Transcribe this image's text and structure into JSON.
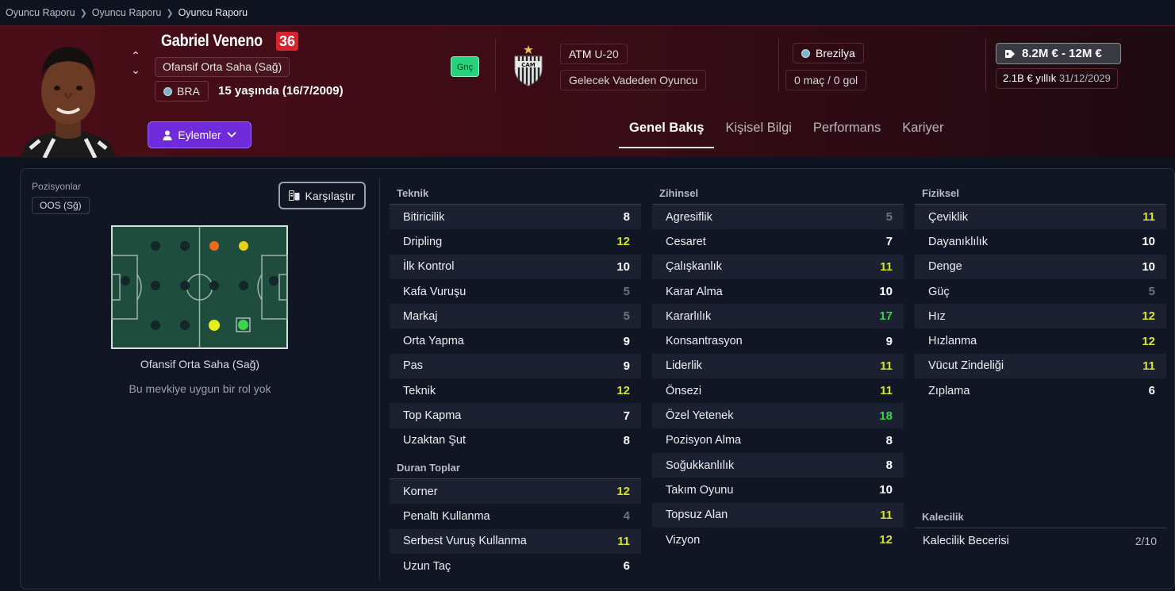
{
  "breadcrumb": [
    "Oyuncu Raporu",
    "Oyuncu Raporu",
    "Oyuncu Raporu"
  ],
  "player": {
    "name": "Gabriel Veneno",
    "ca": "36",
    "position": "Ofansif Orta Saha (Sağ)",
    "nation_code": "BRA",
    "age": "15 yaşında (16/7/2009)",
    "tag": "Gnç"
  },
  "club": {
    "name": "ATM",
    "team": "U-20",
    "status": "Gelecek Vadeden Oyuncu"
  },
  "nation": {
    "name": "Brezilya",
    "caps": "0 maç / 0 gol"
  },
  "value": {
    "range": "8.2M € - 12M €",
    "wage": "2.1B € yıllık",
    "contract_end": "31/12/2029"
  },
  "actions_label": "Eylemler",
  "tabs": [
    "Genel Bakış",
    "Kişisel Bilgi",
    "Performans",
    "Kariyer"
  ],
  "positions": {
    "label": "Pozisyonlar",
    "badge": "OOS (Sğ)",
    "compare_label": "Karşılaştır",
    "role": "Ofansif Orta Saha (Sağ)",
    "note": "Bu mevkiye uygun bir rol yok"
  },
  "attributes": {
    "technical": {
      "title": "Teknik",
      "items": [
        {
          "name": "Bitiricilik",
          "value": "8",
          "color": "white"
        },
        {
          "name": "Dripling",
          "value": "12",
          "color": "yellow"
        },
        {
          "name": "İlk Kontrol",
          "value": "10",
          "color": "white"
        },
        {
          "name": "Kafa Vuruşu",
          "value": "5",
          "color": "grey"
        },
        {
          "name": "Markaj",
          "value": "5",
          "color": "grey"
        },
        {
          "name": "Orta Yapma",
          "value": "9",
          "color": "white"
        },
        {
          "name": "Pas",
          "value": "9",
          "color": "white"
        },
        {
          "name": "Teknik",
          "value": "12",
          "color": "yellow"
        },
        {
          "name": "Top Kapma",
          "value": "7",
          "color": "white"
        },
        {
          "name": "Uzaktan Şut",
          "value": "8",
          "color": "white"
        }
      ]
    },
    "set_pieces": {
      "title": "Duran Toplar",
      "items": [
        {
          "name": "Korner",
          "value": "12",
          "color": "yellow"
        },
        {
          "name": "Penaltı Kullanma",
          "value": "4",
          "color": "grey"
        },
        {
          "name": "Serbest Vuruş Kullanma",
          "value": "11",
          "color": "yellow"
        },
        {
          "name": "Uzun Taç",
          "value": "6",
          "color": "white"
        }
      ]
    },
    "mental": {
      "title": "Zihinsel",
      "items": [
        {
          "name": "Agresiflik",
          "value": "5",
          "color": "grey"
        },
        {
          "name": "Cesaret",
          "value": "7",
          "color": "white"
        },
        {
          "name": "Çalışkanlık",
          "value": "11",
          "color": "yellow"
        },
        {
          "name": "Karar Alma",
          "value": "10",
          "color": "white"
        },
        {
          "name": "Kararlılık",
          "value": "17",
          "color": "green"
        },
        {
          "name": "Konsantrasyon",
          "value": "9",
          "color": "white"
        },
        {
          "name": "Liderlik",
          "value": "11",
          "color": "yellow"
        },
        {
          "name": "Önsezi",
          "value": "11",
          "color": "yellow"
        },
        {
          "name": "Özel Yetenek",
          "value": "18",
          "color": "green"
        },
        {
          "name": "Pozisyon Alma",
          "value": "8",
          "color": "white"
        },
        {
          "name": "Soğukkanlılık",
          "value": "8",
          "color": "white"
        },
        {
          "name": "Takım Oyunu",
          "value": "10",
          "color": "white"
        },
        {
          "name": "Topsuz Alan",
          "value": "11",
          "color": "yellow"
        },
        {
          "name": "Vizyon",
          "value": "12",
          "color": "yellow"
        }
      ]
    },
    "physical": {
      "title": "Fiziksel",
      "items": [
        {
          "name": "Çeviklik",
          "value": "11",
          "color": "yellow"
        },
        {
          "name": "Dayanıklılık",
          "value": "10",
          "color": "white"
        },
        {
          "name": "Denge",
          "value": "10",
          "color": "white"
        },
        {
          "name": "Güç",
          "value": "5",
          "color": "grey"
        },
        {
          "name": "Hız",
          "value": "12",
          "color": "yellow"
        },
        {
          "name": "Hızlanma",
          "value": "12",
          "color": "yellow"
        },
        {
          "name": "Vücut Zindeliği",
          "value": "11",
          "color": "yellow"
        },
        {
          "name": "Zıplama",
          "value": "6",
          "color": "white"
        }
      ]
    },
    "goalkeeping": {
      "title": "Kalecilik",
      "items": [
        {
          "name": "Kalecilik Becerisi",
          "value": "2/10"
        }
      ]
    }
  }
}
